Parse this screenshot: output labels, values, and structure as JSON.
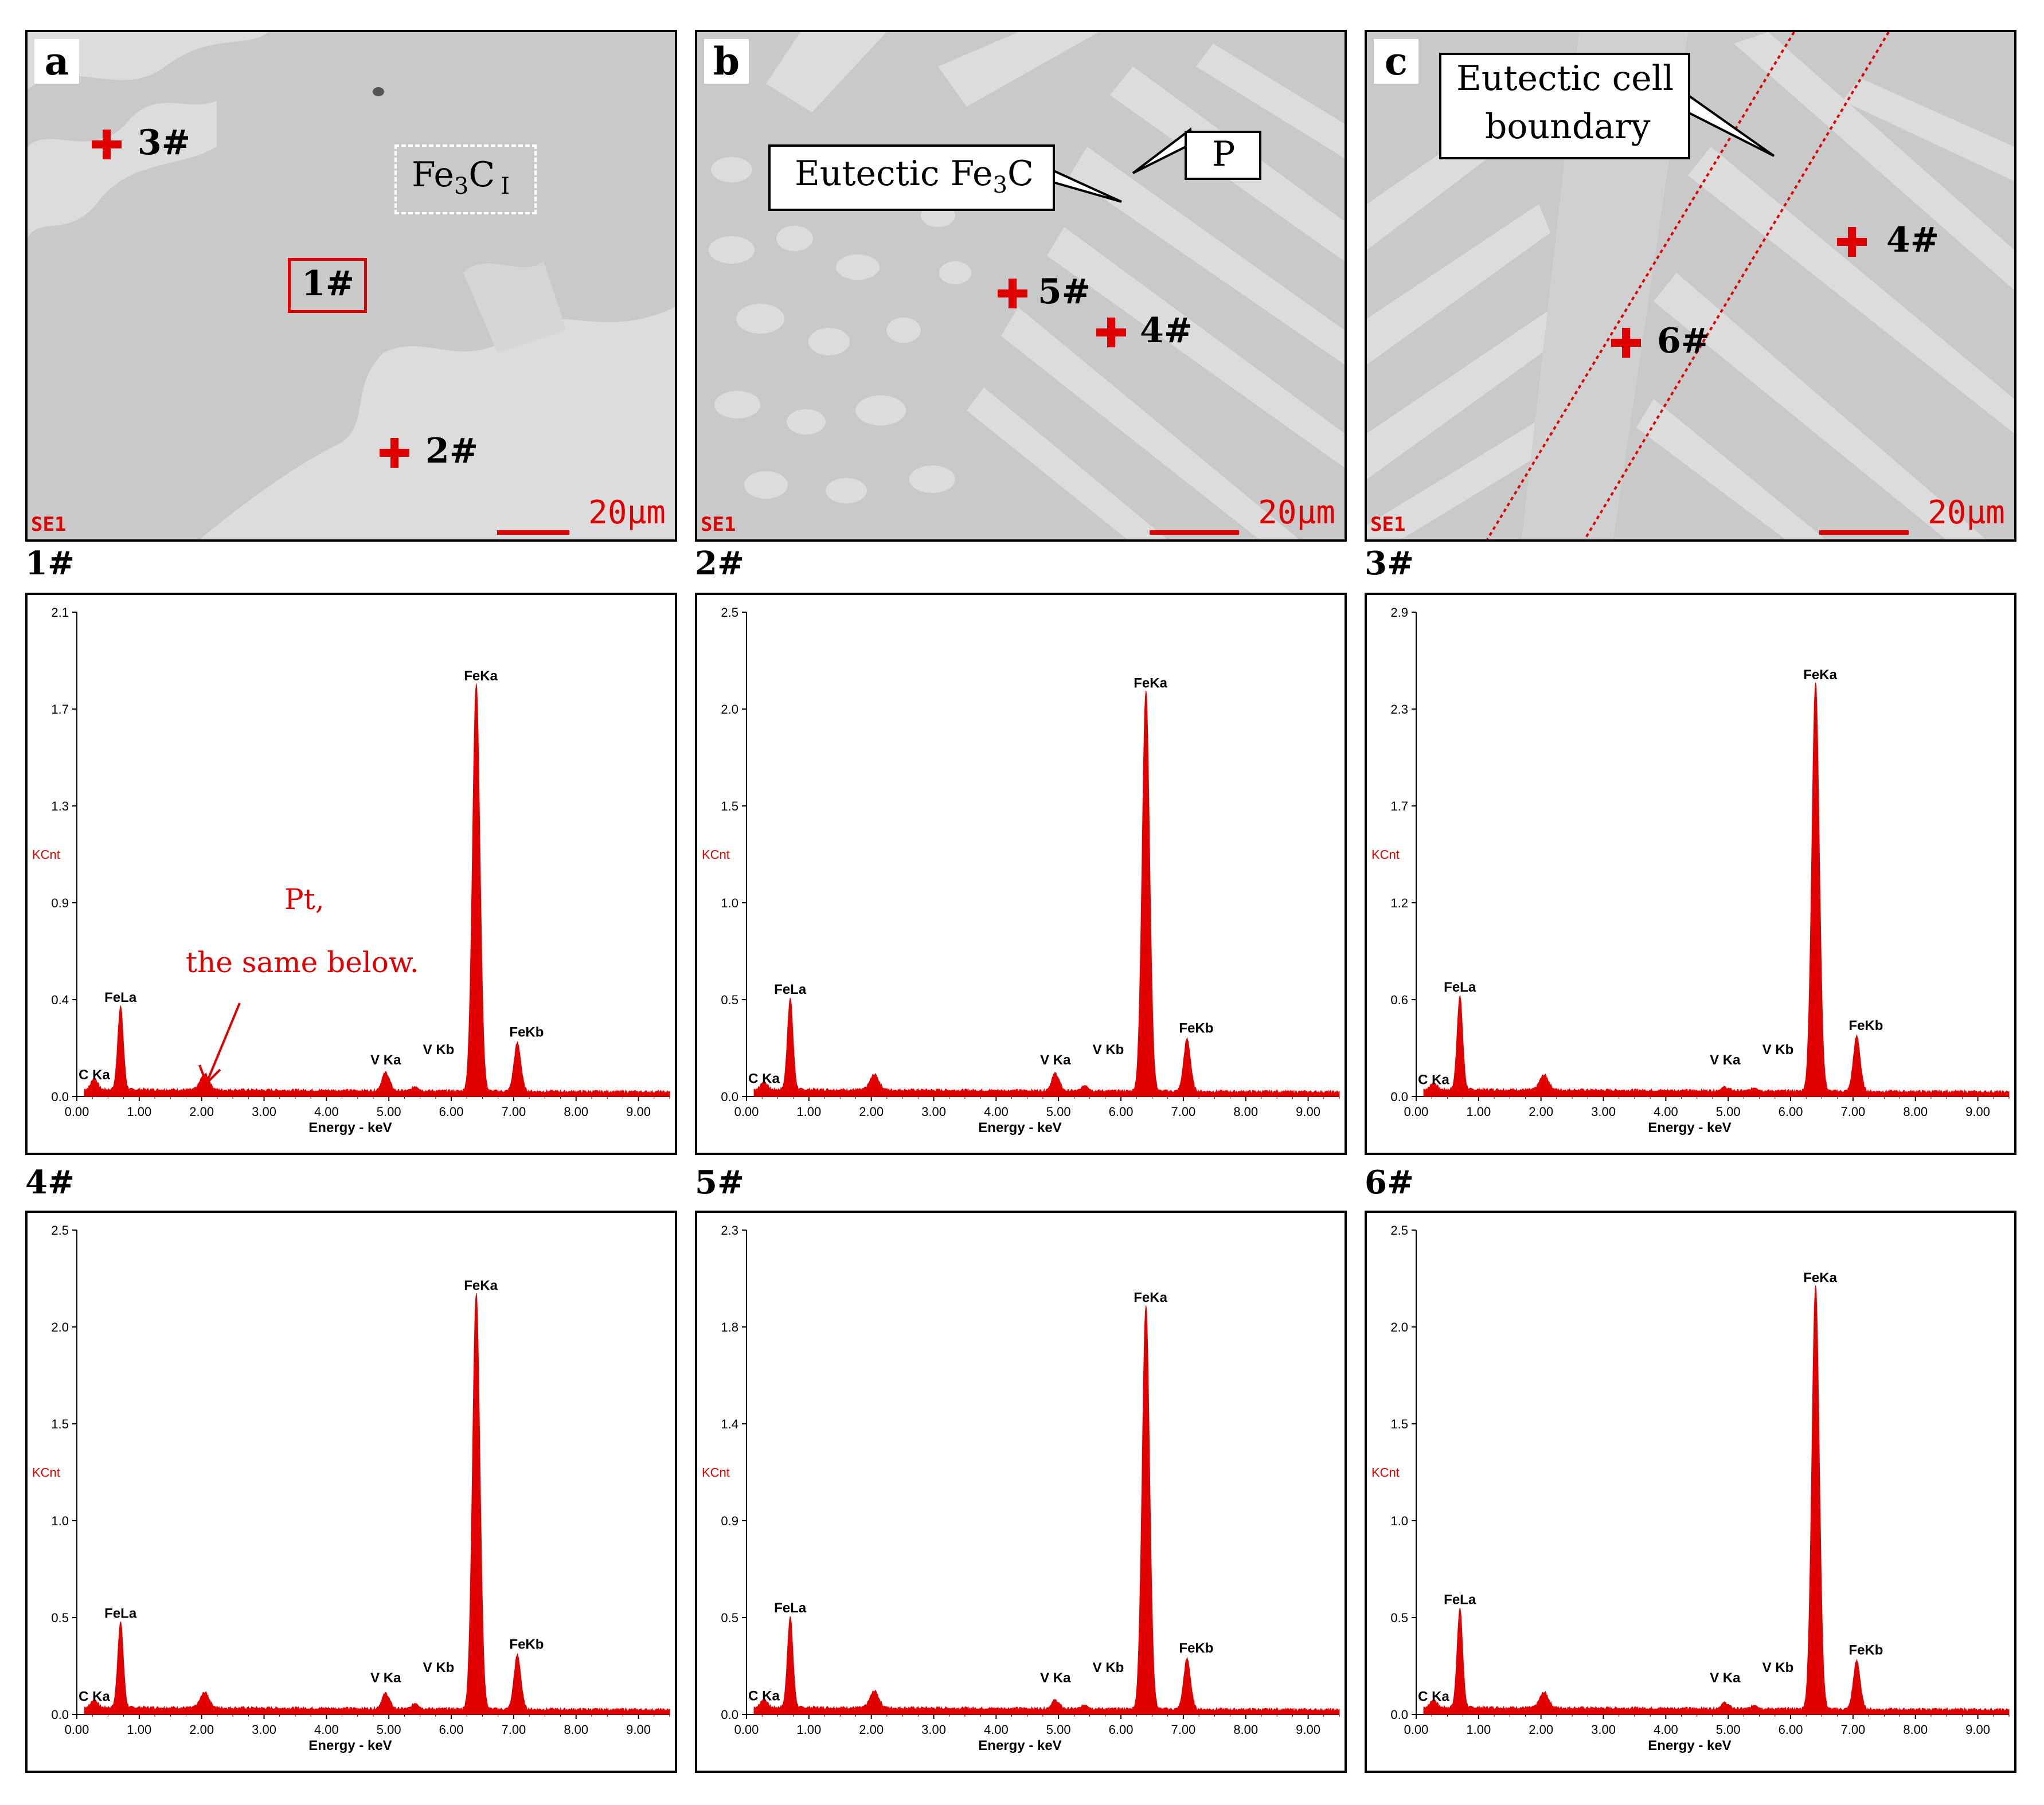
{
  "sem_panels": [
    {
      "letter": "a",
      "se_label": "SE1",
      "scale_label": "20μm",
      "markers": [
        {
          "label": "3#",
          "type": "cross"
        },
        {
          "label": "1#",
          "type": "box"
        },
        {
          "label": "2#",
          "type": "cross"
        }
      ],
      "annotation": {
        "text_main": "Fe",
        "sub1": "3",
        "text2": "C",
        "sub2": "I"
      }
    },
    {
      "letter": "b",
      "se_label": "SE1",
      "scale_label": "20μm",
      "markers": [
        {
          "label": "5#",
          "type": "cross"
        },
        {
          "label": "4#",
          "type": "cross"
        }
      ],
      "callouts": [
        {
          "text_main": "Eutectic Fe",
          "sub": "3",
          "text_end": "C"
        },
        {
          "text_main": "P"
        }
      ]
    },
    {
      "letter": "c",
      "se_label": "SE1",
      "scale_label": "20μm",
      "markers": [
        {
          "label": "4#",
          "type": "cross"
        },
        {
          "label": "6#",
          "type": "cross"
        }
      ],
      "callouts": [
        {
          "line1": "Eutectic cell",
          "line2": "boundary"
        }
      ]
    }
  ],
  "pt_note": {
    "line1": "Pt,",
    "line2": "the same below."
  },
  "chart_data": [
    {
      "type": "area",
      "title": "1#",
      "xlabel": "Energy - keV",
      "ylabel": "KCnt",
      "xlim": [
        0,
        9.5
      ],
      "ylim": [
        0,
        2.1
      ],
      "x_ticks": [
        "0.00",
        "1.00",
        "2.00",
        "3.00",
        "4.00",
        "5.00",
        "6.00",
        "7.00",
        "8.00",
        "9.00"
      ],
      "y_ticks": [
        "0.0",
        "0.4",
        "0.9",
        "1.3",
        "1.7",
        "2.1"
      ],
      "peaks": [
        {
          "label": "C Ka",
          "energy": 0.28,
          "height": 0.05
        },
        {
          "label": "FeLa",
          "energy": 0.7,
          "height": 0.36
        },
        {
          "label": "Pt",
          "energy": 2.05,
          "height": 0.07
        },
        {
          "label": "V Ka",
          "energy": 4.95,
          "height": 0.08
        },
        {
          "label": "V Kb",
          "energy": 5.43,
          "height": 0.02
        },
        {
          "label": "FeKa",
          "energy": 6.4,
          "height": 1.77
        },
        {
          "label": "FeKb",
          "energy": 7.06,
          "height": 0.21
        }
      ]
    },
    {
      "type": "area",
      "title": "2#",
      "xlabel": "Energy - keV",
      "ylabel": "KCnt",
      "xlim": [
        0,
        9.5
      ],
      "ylim": [
        0,
        2.5
      ],
      "x_ticks": [
        "0.00",
        "1.00",
        "2.00",
        "3.00",
        "4.00",
        "5.00",
        "6.00",
        "7.00",
        "8.00",
        "9.00"
      ],
      "y_ticks": [
        "0.0",
        "0.5",
        "1.0",
        "1.5",
        "2.0",
        "2.5"
      ],
      "peaks": [
        {
          "label": "C Ka",
          "energy": 0.28,
          "height": 0.04
        },
        {
          "label": "FeLa",
          "energy": 0.7,
          "height": 0.47
        },
        {
          "label": "Pt",
          "energy": 2.05,
          "height": 0.08
        },
        {
          "label": "V Ka",
          "energy": 4.95,
          "height": 0.09
        },
        {
          "label": "V Kb",
          "energy": 5.43,
          "height": 0.03
        },
        {
          "label": "FeKa",
          "energy": 6.4,
          "height": 2.07
        },
        {
          "label": "FeKb",
          "energy": 7.06,
          "height": 0.27
        }
      ]
    },
    {
      "type": "area",
      "title": "3#",
      "xlabel": "Energy - keV",
      "ylabel": "KCnt",
      "xlim": [
        0,
        9.5
      ],
      "ylim": [
        0,
        2.9
      ],
      "x_ticks": [
        "0.00",
        "1.00",
        "2.00",
        "3.00",
        "4.00",
        "5.00",
        "6.00",
        "7.00",
        "8.00",
        "9.00"
      ],
      "y_ticks": [
        "0.0",
        "0.6",
        "1.2",
        "1.7",
        "2.3",
        "2.9"
      ],
      "peaks": [
        {
          "label": "C Ka",
          "energy": 0.28,
          "height": 0.04
        },
        {
          "label": "FeLa",
          "energy": 0.7,
          "height": 0.56
        },
        {
          "label": "Pt",
          "energy": 2.05,
          "height": 0.09
        },
        {
          "label": "V Ka",
          "energy": 4.95,
          "height": 0.02
        },
        {
          "label": "V Kb",
          "energy": 5.43,
          "height": 0.02
        },
        {
          "label": "FeKa",
          "energy": 6.4,
          "height": 2.45
        },
        {
          "label": "FeKb",
          "energy": 7.06,
          "height": 0.33
        }
      ]
    },
    {
      "type": "area",
      "title": "4#",
      "xlabel": "Energy - keV",
      "ylabel": "KCnt",
      "xlim": [
        0,
        9.5
      ],
      "ylim": [
        0,
        2.5
      ],
      "x_ticks": [
        "0.00",
        "1.00",
        "2.00",
        "3.00",
        "4.00",
        "5.00",
        "6.00",
        "7.00",
        "8.00",
        "9.00"
      ],
      "y_ticks": [
        "0.0",
        "0.5",
        "1.0",
        "1.5",
        "2.0",
        "2.5"
      ],
      "peaks": [
        {
          "label": "C Ka",
          "energy": 0.28,
          "height": 0.04
        },
        {
          "label": "FeLa",
          "energy": 0.7,
          "height": 0.44
        },
        {
          "label": "Pt",
          "energy": 2.05,
          "height": 0.08
        },
        {
          "label": "V Ka",
          "energy": 4.95,
          "height": 0.08
        },
        {
          "label": "V Kb",
          "energy": 5.43,
          "height": 0.03
        },
        {
          "label": "FeKa",
          "energy": 6.4,
          "height": 2.15
        },
        {
          "label": "FeKb",
          "energy": 7.06,
          "height": 0.28
        }
      ]
    },
    {
      "type": "area",
      "title": "5#",
      "xlabel": "Energy - keV",
      "ylabel": "KCnt",
      "xlim": [
        0,
        9.5
      ],
      "ylim": [
        0,
        2.3
      ],
      "x_ticks": [
        "0.00",
        "1.00",
        "2.00",
        "3.00",
        "4.00",
        "5.00",
        "6.00",
        "7.00",
        "8.00",
        "9.00"
      ],
      "y_ticks": [
        "0.0",
        "0.5",
        "0.9",
        "1.4",
        "1.8",
        "2.3"
      ],
      "peaks": [
        {
          "label": "C Ka",
          "energy": 0.28,
          "height": 0.04
        },
        {
          "label": "FeLa",
          "energy": 0.7,
          "height": 0.43
        },
        {
          "label": "Pt",
          "energy": 2.05,
          "height": 0.08
        },
        {
          "label": "V Ka",
          "energy": 4.95,
          "height": 0.04
        },
        {
          "label": "V Kb",
          "energy": 5.43,
          "height": 0.02
        },
        {
          "label": "FeKa",
          "energy": 6.4,
          "height": 1.92
        },
        {
          "label": "FeKb",
          "energy": 7.06,
          "height": 0.24
        }
      ]
    },
    {
      "type": "area",
      "title": "6#",
      "xlabel": "Energy - keV",
      "ylabel": "KCnt",
      "xlim": [
        0,
        9.5
      ],
      "ylim": [
        0,
        2.5
      ],
      "x_ticks": [
        "0.00",
        "1.00",
        "2.00",
        "3.00",
        "4.00",
        "5.00",
        "6.00",
        "7.00",
        "8.00",
        "9.00"
      ],
      "y_ticks": [
        "0.0",
        "0.5",
        "1.0",
        "1.5",
        "2.0",
        "2.5"
      ],
      "peaks": [
        {
          "label": "C Ka",
          "energy": 0.28,
          "height": 0.04
        },
        {
          "label": "FeLa",
          "energy": 0.7,
          "height": 0.51
        },
        {
          "label": "Pt",
          "energy": 2.05,
          "height": 0.08
        },
        {
          "label": "V Ka",
          "energy": 4.95,
          "height": 0.03
        },
        {
          "label": "V Kb",
          "energy": 5.43,
          "height": 0.02
        },
        {
          "label": "FeKa",
          "energy": 6.4,
          "height": 2.19
        },
        {
          "label": "FeKb",
          "energy": 7.06,
          "height": 0.25
        }
      ]
    }
  ]
}
